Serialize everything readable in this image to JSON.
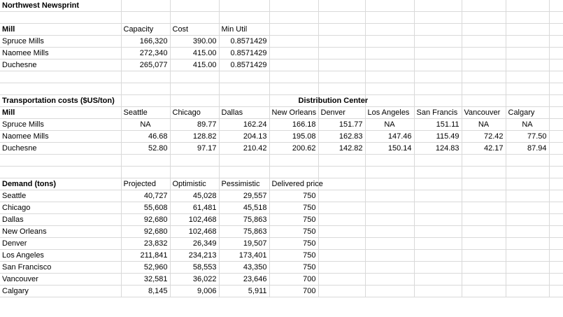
{
  "title": "Northwest Newsprint",
  "mills": {
    "headers": [
      "Mill",
      "Capacity",
      "Cost",
      "Min Util"
    ],
    "rows": [
      [
        "Spruce Mills",
        "166,320",
        "390.00",
        "0.8571429"
      ],
      [
        "Naomee Mills",
        "272,340",
        "415.00",
        "0.8571429"
      ],
      [
        "Duchesne",
        "265,077",
        "415.00",
        "0.8571429"
      ]
    ]
  },
  "transport": {
    "title": "Transportation costs ($US/ton)",
    "group_header": "Distribution Center",
    "headers": [
      "Mill",
      "Seattle",
      "Chicago",
      "Dallas",
      "New Orleans",
      "Denver",
      "Los Angeles",
      "San Francis",
      "Vancouver",
      "Calgary"
    ],
    "rows": [
      [
        "Spruce Mills",
        "NA",
        "89.77",
        "162.24",
        "166.18",
        "151.77",
        "NA",
        "151.11",
        "NA",
        "NA"
      ],
      [
        "Naomee Mills",
        "46.68",
        "128.82",
        "204.13",
        "195.08",
        "162.83",
        "147.46",
        "115.49",
        "72.42",
        "77.50"
      ],
      [
        "Duchesne",
        "52.80",
        "97.17",
        "210.42",
        "200.62",
        "142.82",
        "150.14",
        "124.83",
        "42.17",
        "87.94"
      ]
    ]
  },
  "demand": {
    "headers": [
      "Demand (tons)",
      "Projected",
      "Optimistic",
      "Pessimistic",
      "Delivered price"
    ],
    "rows": [
      [
        "Seattle",
        "40,727",
        "45,028",
        "29,557",
        "750"
      ],
      [
        "Chicago",
        "55,608",
        "61,481",
        "45,518",
        "750"
      ],
      [
        "Dallas",
        "92,680",
        "102,468",
        "75,863",
        "750"
      ],
      [
        "New Orleans",
        "92,680",
        "102,468",
        "75,863",
        "750"
      ],
      [
        "Denver",
        "23,832",
        "26,349",
        "19,507",
        "750"
      ],
      [
        "Los Angeles",
        "211,841",
        "234,213",
        "173,401",
        "750"
      ],
      [
        "San Francisco",
        "52,960",
        "58,553",
        "43,350",
        "750"
      ],
      [
        "Vancouver",
        "32,581",
        "36,022",
        "23,646",
        "700"
      ],
      [
        "Calgary",
        "8,145",
        "9,006",
        "5,911",
        "700"
      ]
    ]
  }
}
